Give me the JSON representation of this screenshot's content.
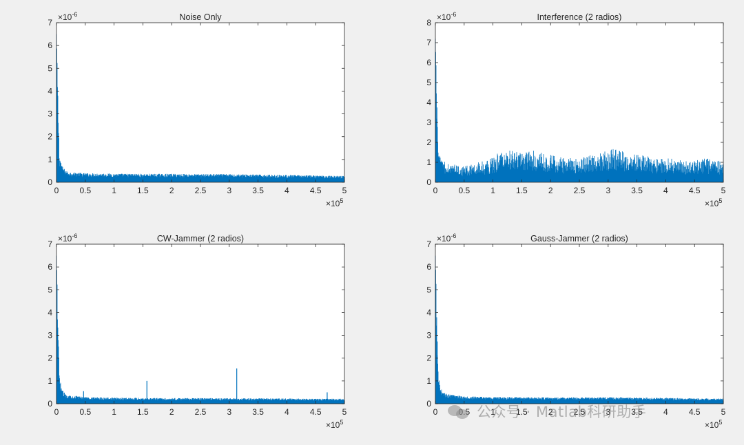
{
  "chart_data": [
    {
      "type": "area",
      "title": "Noise Only",
      "xlabel": "",
      "ylabel": "",
      "x_exponent_label": "×10",
      "x_exponent": "5",
      "y_exponent_label": "×10",
      "y_exponent": "-6",
      "xlim": [
        0,
        5
      ],
      "ylim": [
        0,
        7
      ],
      "xticks": [
        "0",
        "0.5",
        "1",
        "1.5",
        "2",
        "2.5",
        "3",
        "3.5",
        "4",
        "4.5",
        "5"
      ],
      "yticks": [
        "0",
        "1",
        "2",
        "3",
        "4",
        "5",
        "6",
        "7"
      ],
      "grid": false,
      "series": [
        {
          "x": [
            0,
            0.05,
            0.1,
            0.15,
            0.2,
            0.5,
            1.0,
            1.5,
            2.0,
            2.5,
            3.0,
            3.5,
            4.0,
            4.5,
            5.0
          ],
          "values": [
            6.5,
            1.2,
            0.7,
            0.55,
            0.45,
            0.4,
            0.38,
            0.37,
            0.37,
            0.36,
            0.36,
            0.34,
            0.32,
            0.3,
            0.28
          ]
        }
      ],
      "spikes": []
    },
    {
      "type": "area",
      "title": "Interference (2 radios)",
      "xlabel": "",
      "ylabel": "",
      "x_exponent_label": "×10",
      "x_exponent": "5",
      "y_exponent_label": "×10",
      "y_exponent": "-6",
      "xlim": [
        0,
        5
      ],
      "ylim": [
        0,
        8
      ],
      "xticks": [
        "0",
        "0.5",
        "1",
        "1.5",
        "2",
        "2.5",
        "3",
        "3.5",
        "4",
        "4.5",
        "5"
      ],
      "yticks": [
        "0",
        "1",
        "2",
        "3",
        "4",
        "5",
        "6",
        "7",
        "8"
      ],
      "grid": false,
      "series": [
        {
          "x": [
            0,
            0.05,
            0.1,
            0.3,
            0.5,
            0.7,
            0.9,
            1.1,
            1.3,
            1.5,
            1.7,
            1.9,
            2.1,
            2.3,
            2.5,
            2.7,
            2.9,
            3.1,
            3.3,
            3.5,
            3.7,
            3.9,
            4.1,
            4.3,
            4.5,
            4.7,
            4.9,
            5.0
          ],
          "values": [
            7.2,
            1.6,
            1.1,
            0.9,
            0.8,
            1.0,
            1.1,
            1.5,
            1.6,
            1.5,
            1.6,
            1.5,
            1.3,
            1.2,
            1.3,
            1.4,
            1.5,
            1.7,
            1.5,
            1.4,
            1.3,
            1.2,
            1.2,
            1.1,
            1.1,
            1.2,
            1.1,
            1.0
          ]
        }
      ],
      "spikes": []
    },
    {
      "type": "area",
      "title": "CW-Jammer (2 radios)",
      "xlabel": "",
      "ylabel": "",
      "x_exponent_label": "×10",
      "x_exponent": "5",
      "y_exponent_label": "×10",
      "y_exponent": "-6",
      "xlim": [
        0,
        5
      ],
      "ylim": [
        0,
        7
      ],
      "xticks": [
        "0",
        "0.5",
        "1",
        "1.5",
        "2",
        "2.5",
        "3",
        "3.5",
        "4",
        "4.5",
        "5"
      ],
      "yticks": [
        "0",
        "1",
        "2",
        "3",
        "4",
        "5",
        "6",
        "7"
      ],
      "grid": false,
      "series": [
        {
          "x": [
            0,
            0.05,
            0.1,
            0.15,
            0.2,
            0.5,
            1.0,
            1.5,
            2.0,
            2.5,
            3.0,
            3.5,
            4.0,
            4.5,
            5.0
          ],
          "values": [
            6.5,
            1.2,
            0.6,
            0.45,
            0.38,
            0.3,
            0.27,
            0.26,
            0.25,
            0.25,
            0.24,
            0.24,
            0.23,
            0.22,
            0.22
          ]
        }
      ],
      "spikes": [
        {
          "x": 0.47,
          "y": 0.55
        },
        {
          "x": 1.57,
          "y": 1.0
        },
        {
          "x": 3.13,
          "y": 1.55
        },
        {
          "x": 4.7,
          "y": 0.5
        }
      ]
    },
    {
      "type": "area",
      "title": "Gauss-Jammer (2 radios)",
      "xlabel": "",
      "ylabel": "",
      "x_exponent_label": "×10",
      "x_exponent": "5",
      "y_exponent_label": "×10",
      "y_exponent": "-6",
      "xlim": [
        0,
        5
      ],
      "ylim": [
        0,
        7
      ],
      "xticks": [
        "0",
        "0.5",
        "1",
        "1.5",
        "2",
        "2.5",
        "3",
        "3.5",
        "4",
        "4.5",
        "5"
      ],
      "yticks": [
        "0",
        "1",
        "2",
        "3",
        "4",
        "5",
        "6",
        "7"
      ],
      "grid": false,
      "series": [
        {
          "x": [
            0,
            0.05,
            0.1,
            0.15,
            0.2,
            0.5,
            1.0,
            1.5,
            2.0,
            2.5,
            3.0,
            3.5,
            4.0,
            4.5,
            5.0
          ],
          "values": [
            6.5,
            1.3,
            0.65,
            0.5,
            0.42,
            0.33,
            0.3,
            0.29,
            0.28,
            0.28,
            0.29,
            0.27,
            0.26,
            0.24,
            0.23
          ]
        }
      ],
      "spikes": []
    }
  ],
  "colors": {
    "series": "#0072bd",
    "axis": "#262626",
    "background": "#f0f0f0",
    "plot_background": "#ffffff"
  },
  "watermark": {
    "text": "公众号 · Matlab科研助手",
    "icon": "wechat-logo-icon"
  }
}
